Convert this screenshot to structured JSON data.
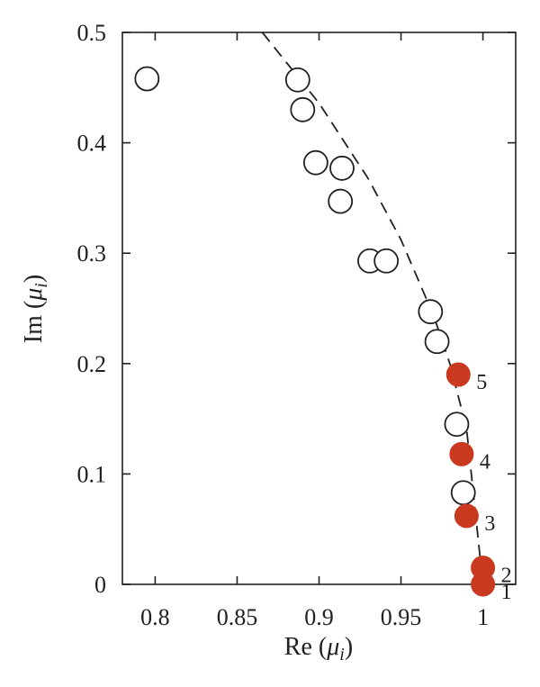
{
  "chart_data": {
    "type": "scatter",
    "title": "",
    "xlabel": {
      "prefix": "Re (",
      "symbol": "μ",
      "subscript": "i",
      "suffix": ")"
    },
    "ylabel": {
      "prefix": "Im (",
      "symbol": "μ",
      "subscript": "i",
      "suffix": ")"
    },
    "xlim": [
      0.78,
      1.02
    ],
    "ylim": [
      0,
      0.5
    ],
    "xticks": [
      0.8,
      0.85,
      0.9,
      0.95,
      1
    ],
    "xtick_labels": [
      "0.8",
      "0.85",
      "0.9",
      "0.95",
      "1"
    ],
    "yticks": [
      0,
      0.1,
      0.2,
      0.3,
      0.4,
      0.5
    ],
    "ytick_labels": [
      "0",
      "0.1",
      "0.2",
      "0.3",
      "0.4",
      "0.5"
    ],
    "grid": false,
    "series": [
      {
        "style": "open-circle",
        "color": "#231f20",
        "points": [
          {
            "x": 0.795,
            "y": 0.458
          },
          {
            "x": 0.887,
            "y": 0.457
          },
          {
            "x": 0.89,
            "y": 0.43
          },
          {
            "x": 0.898,
            "y": 0.382
          },
          {
            "x": 0.914,
            "y": 0.377
          },
          {
            "x": 0.913,
            "y": 0.347
          },
          {
            "x": 0.931,
            "y": 0.293
          },
          {
            "x": 0.941,
            "y": 0.293
          },
          {
            "x": 0.968,
            "y": 0.247
          },
          {
            "x": 0.972,
            "y": 0.22
          },
          {
            "x": 0.984,
            "y": 0.145
          },
          {
            "x": 0.988,
            "y": 0.083
          }
        ]
      },
      {
        "style": "filled-circle",
        "color": "#c8391f",
        "points": [
          {
            "x": 1.0,
            "y": 0.0,
            "label": "1"
          },
          {
            "x": 1.0,
            "y": 0.015,
            "label": "2"
          },
          {
            "x": 0.99,
            "y": 0.062,
            "label": "3"
          },
          {
            "x": 0.987,
            "y": 0.118,
            "label": "4"
          },
          {
            "x": 0.985,
            "y": 0.19,
            "label": "5"
          }
        ]
      },
      {
        "style": "dashed-curve",
        "color": "#231f20",
        "points": [
          {
            "x": 0.8654,
            "y": 0.5
          },
          {
            "x": 0.9,
            "y": 0.4359
          },
          {
            "x": 0.93,
            "y": 0.3676
          },
          {
            "x": 0.95,
            "y": 0.3122
          },
          {
            "x": 0.97,
            "y": 0.2431
          },
          {
            "x": 0.98,
            "y": 0.199
          },
          {
            "x": 0.99,
            "y": 0.141
          },
          {
            "x": 1.0,
            "y": 0.0
          }
        ]
      }
    ]
  }
}
